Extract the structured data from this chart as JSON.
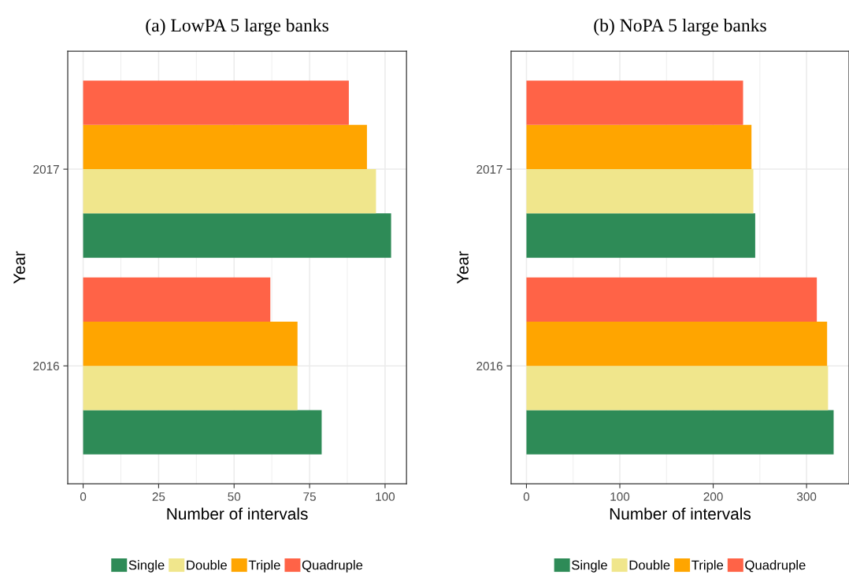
{
  "chart_data": [
    {
      "type": "bar",
      "orientation": "horizontal",
      "title": "(a) LowPA 5 large banks",
      "xlabel": "Number of intervals",
      "ylabel": "Year",
      "categories": [
        "2017",
        "2016"
      ],
      "series": [
        {
          "name": "Single",
          "color": "#2e8b57",
          "values": [
            102,
            79
          ]
        },
        {
          "name": "Double",
          "color": "#f0e68c",
          "values": [
            97,
            71
          ]
        },
        {
          "name": "Triple",
          "color": "#ffa500",
          "values": [
            94,
            71
          ]
        },
        {
          "name": "Quadruple",
          "color": "#ff6347",
          "values": [
            88,
            62
          ]
        }
      ],
      "xlim": [
        -5.1,
        107.1
      ],
      "xticks": [
        0,
        25,
        50,
        75,
        100
      ],
      "grid": true,
      "legend": "bottom"
    },
    {
      "type": "bar",
      "orientation": "horizontal",
      "title": "(b) NoPA 5 large banks",
      "xlabel": "Number of intervals",
      "ylabel": "Year",
      "categories": [
        "2017",
        "2016"
      ],
      "series": [
        {
          "name": "Single",
          "color": "#2e8b57",
          "values": [
            245,
            329
          ]
        },
        {
          "name": "Double",
          "color": "#f0e68c",
          "values": [
            243,
            323
          ]
        },
        {
          "name": "Triple",
          "color": "#ffa500",
          "values": [
            241,
            322
          ]
        },
        {
          "name": "Quadruple",
          "color": "#ff6347",
          "values": [
            232,
            311
          ]
        }
      ],
      "xlim": [
        -16.45,
        345.45
      ],
      "xticks": [
        0,
        100,
        200,
        300
      ],
      "grid": true,
      "legend": "bottom"
    }
  ]
}
